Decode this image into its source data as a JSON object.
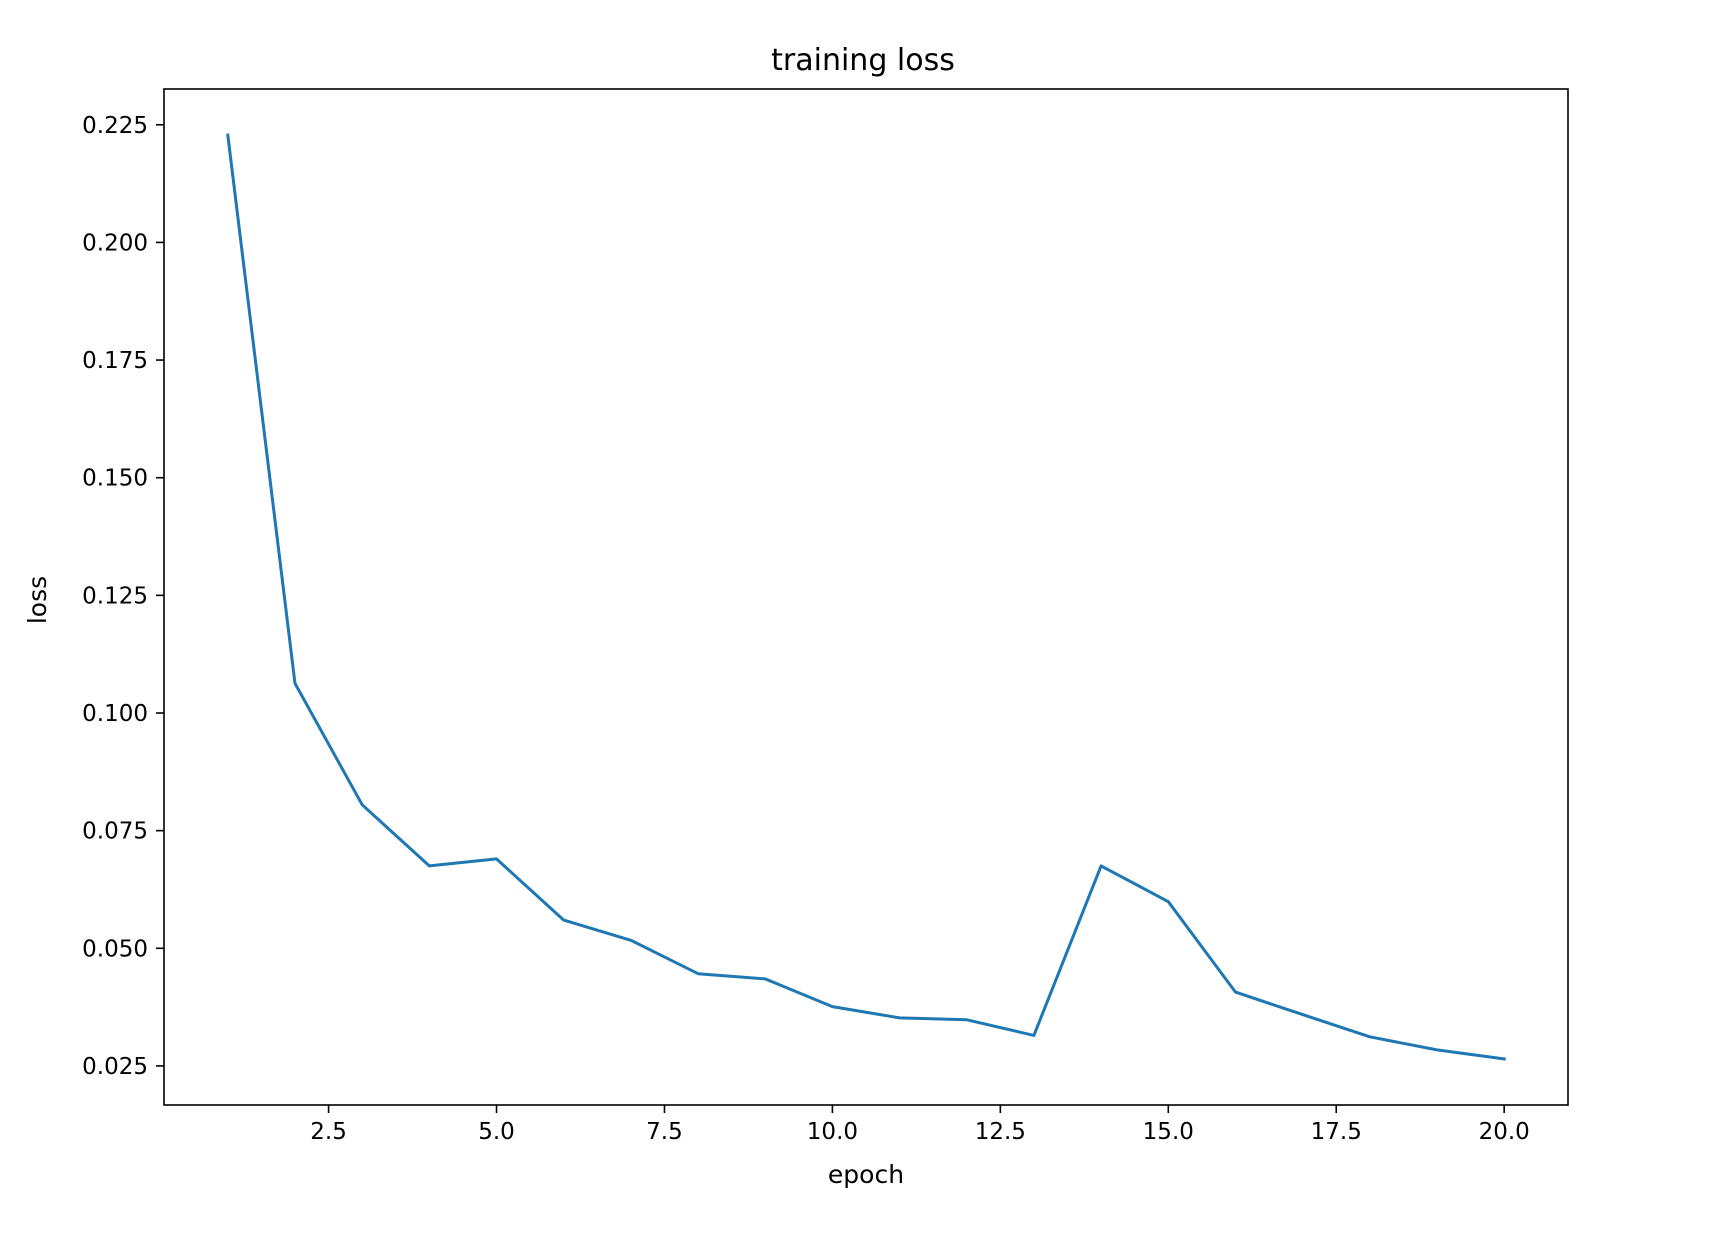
{
  "chart_data": {
    "type": "line",
    "title": "training loss",
    "xlabel": "epoch",
    "ylabel": "loss",
    "x": [
      1,
      2,
      3,
      4,
      5,
      6,
      7,
      8,
      9,
      10,
      11,
      12,
      13,
      14,
      15,
      16,
      17,
      18,
      19,
      20
    ],
    "series": [
      {
        "values": [
          0.2228,
          0.1063,
          0.0805,
          0.0675,
          0.069,
          0.056,
          0.0517,
          0.0446,
          0.0435,
          0.0376,
          0.0352,
          0.0348,
          0.0315,
          0.0675,
          0.0599,
          0.0407,
          0.0359,
          0.0312,
          0.0284,
          0.0265
        ],
        "color": "#1f77b4"
      }
    ],
    "xlim": [
      0.05,
      20.95
    ],
    "ylim": [
      0.0167,
      0.2326
    ],
    "xticks": [
      2.5,
      5.0,
      7.5,
      10.0,
      12.5,
      15.0,
      17.5,
      20.0
    ],
    "xtick_labels": [
      "2.5",
      "5.0",
      "7.5",
      "10.0",
      "12.5",
      "15.0",
      "17.5",
      "20.0"
    ],
    "yticks": [
      0.025,
      0.05,
      0.075,
      0.1,
      0.125,
      0.15,
      0.175,
      0.2,
      0.225
    ],
    "ytick_labels": [
      "0.025",
      "0.050",
      "0.075",
      "0.100",
      "0.125",
      "0.150",
      "0.175",
      "0.200",
      "0.225"
    ],
    "grid": false,
    "legend": "none"
  }
}
